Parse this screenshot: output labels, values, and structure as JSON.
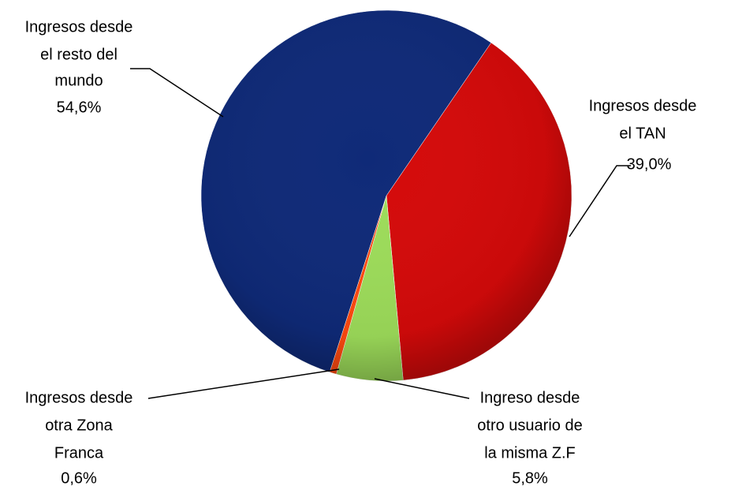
{
  "chart_data": {
    "type": "pie",
    "labels": [
      [
        "Ingresos desde",
        "el TAN"
      ],
      [
        "Ingreso desde",
        "otro usuario de",
        "la misma Z.F"
      ],
      [
        "Ingresos desde",
        "otra Zona",
        "Franca"
      ],
      [
        "Ingresos desde",
        "el resto del",
        "mundo"
      ]
    ],
    "values": [
      39.0,
      5.8,
      0.6,
      54.6
    ],
    "value_labels": [
      "39,0%",
      "5,8%",
      "0,6%",
      "54,6%"
    ],
    "colors": [
      "#d40a0a",
      "#9ddc5a",
      "#ff4a10",
      "#0f2a78"
    ]
  }
}
